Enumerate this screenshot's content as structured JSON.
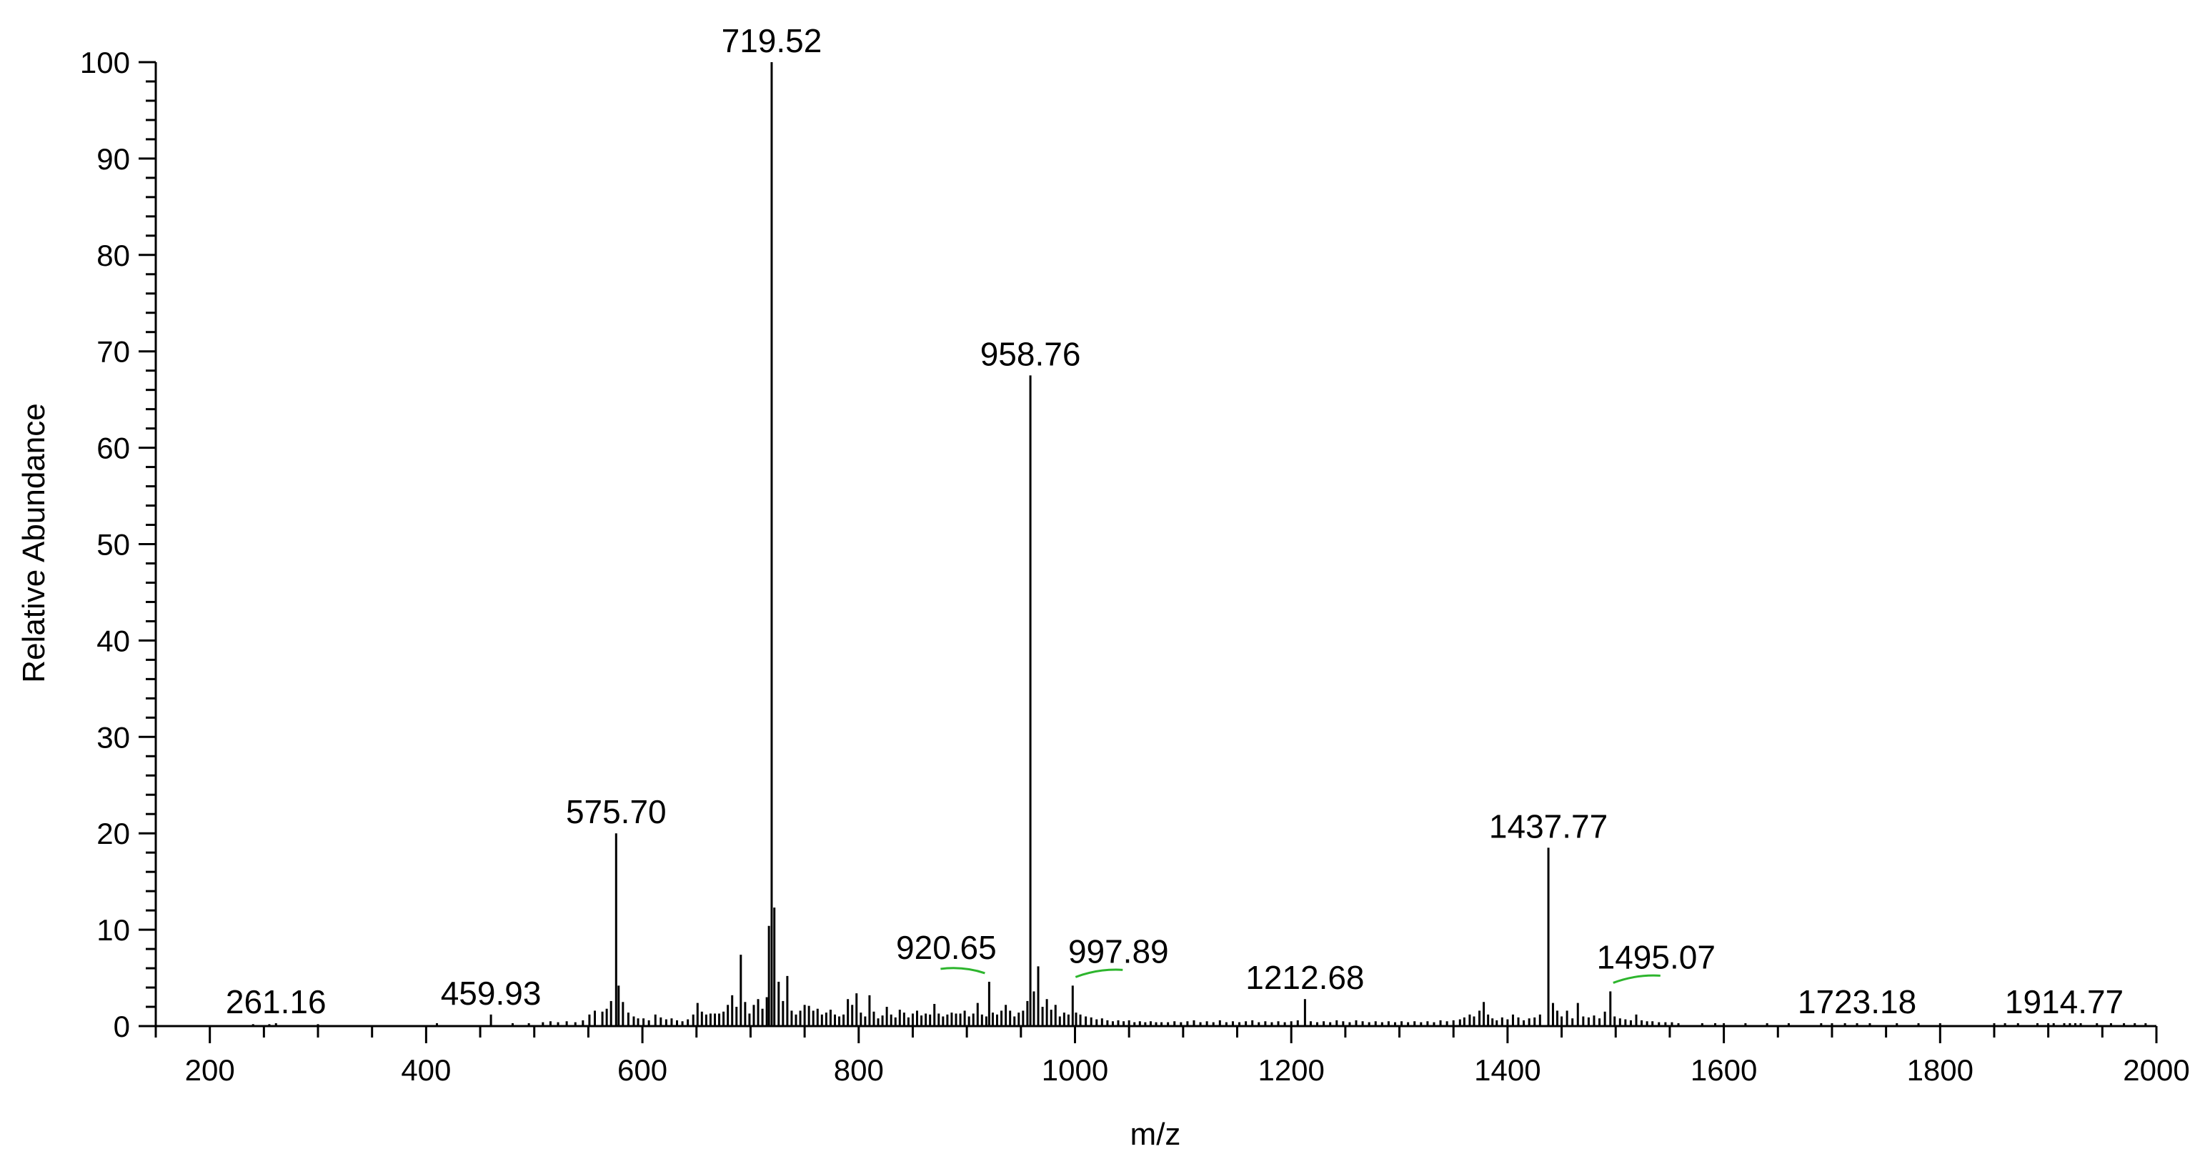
{
  "chart_data": {
    "type": "bar",
    "title": "",
    "xlabel": "m/z",
    "ylabel": "Relative Abundance",
    "xlim": [
      150,
      2000
    ],
    "ylim": [
      0,
      100
    ],
    "x_ticks": [
      200,
      400,
      600,
      800,
      1000,
      1200,
      1400,
      1600,
      1800,
      2000
    ],
    "y_ticks": [
      0,
      10,
      20,
      30,
      40,
      50,
      60,
      70,
      80,
      90,
      100
    ],
    "grid": false,
    "legend": "none",
    "colors": {
      "peaks": "#000000",
      "axes": "#000000",
      "label_connector": "#2db52d"
    },
    "labeled_peaks": [
      {
        "label": "261.16",
        "mz": 261.16,
        "intensity": 0.3
      },
      {
        "label": "459.93",
        "mz": 459.93,
        "intensity": 1.2
      },
      {
        "label": "575.70",
        "mz": 575.7,
        "intensity": 20
      },
      {
        "label": "719.52",
        "mz": 719.52,
        "intensity": 100
      },
      {
        "label": "920.65",
        "mz": 920.65,
        "intensity": 4.6,
        "connector": true
      },
      {
        "label": "958.76",
        "mz": 958.76,
        "intensity": 67.5
      },
      {
        "label": "997.89",
        "mz": 997.89,
        "intensity": 4.2,
        "connector": true
      },
      {
        "label": "1212.68",
        "mz": 1212.68,
        "intensity": 2.8
      },
      {
        "label": "1437.77",
        "mz": 1437.77,
        "intensity": 18.5
      },
      {
        "label": "1495.07",
        "mz": 1495.07,
        "intensity": 3.6,
        "connector": true
      },
      {
        "label": "1723.18",
        "mz": 1723.18,
        "intensity": 0.3
      },
      {
        "label": "1914.77",
        "mz": 1914.77,
        "intensity": 0.3
      }
    ],
    "minor_peaks": [
      [
        508,
        0.4
      ],
      [
        515,
        0.5
      ],
      [
        522,
        0.4
      ],
      [
        530,
        0.5
      ],
      [
        538,
        0.4
      ],
      [
        545,
        0.6
      ],
      [
        551,
        1.2
      ],
      [
        556,
        1.6
      ],
      [
        563,
        1.5
      ],
      [
        567,
        1.8
      ],
      [
        571,
        2.6
      ],
      [
        578,
        4.2
      ],
      [
        582,
        2.5
      ],
      [
        587,
        1.4
      ],
      [
        592,
        1.0
      ],
      [
        596,
        0.8
      ],
      [
        601,
        0.8
      ],
      [
        606,
        0.6
      ],
      [
        612,
        1.2
      ],
      [
        617,
        0.9
      ],
      [
        622,
        0.7
      ],
      [
        627,
        0.8
      ],
      [
        632,
        0.6
      ],
      [
        637,
        0.5
      ],
      [
        642,
        0.7
      ],
      [
        647,
        1.2
      ],
      [
        651,
        2.4
      ],
      [
        655,
        1.5
      ],
      [
        659,
        1.2
      ],
      [
        663,
        1.3
      ],
      [
        667,
        1.3
      ],
      [
        671,
        1.3
      ],
      [
        675,
        1.5
      ],
      [
        679,
        2.2
      ],
      [
        683,
        3.2
      ],
      [
        687,
        2.0
      ],
      [
        691,
        7.4
      ],
      [
        695,
        2.5
      ],
      [
        699,
        1.3
      ],
      [
        703,
        2.2
      ],
      [
        707,
        2.8
      ],
      [
        711,
        1.8
      ],
      [
        715,
        3.0
      ],
      [
        717,
        10.4
      ],
      [
        722,
        12.3
      ],
      [
        726,
        4.6
      ],
      [
        730,
        2.6
      ],
      [
        734,
        5.2
      ],
      [
        738,
        1.6
      ],
      [
        742,
        1.2
      ],
      [
        746,
        1.6
      ],
      [
        750,
        2.2
      ],
      [
        754,
        2.1
      ],
      [
        758,
        1.6
      ],
      [
        762,
        1.8
      ],
      [
        766,
        1.2
      ],
      [
        770,
        1.4
      ],
      [
        774,
        1.7
      ],
      [
        778,
        1.2
      ],
      [
        782,
        1.0
      ],
      [
        786,
        1.2
      ],
      [
        790,
        2.8
      ],
      [
        794,
        2.2
      ],
      [
        798,
        3.4
      ],
      [
        802,
        1.4
      ],
      [
        806,
        1.0
      ],
      [
        810,
        3.2
      ],
      [
        814,
        1.5
      ],
      [
        818,
        0.8
      ],
      [
        822,
        1.1
      ],
      [
        826,
        2.0
      ],
      [
        830,
        1.2
      ],
      [
        834,
        0.9
      ],
      [
        838,
        1.7
      ],
      [
        842,
        1.4
      ],
      [
        846,
        0.9
      ],
      [
        850,
        1.3
      ],
      [
        854,
        1.6
      ],
      [
        858,
        1.1
      ],
      [
        862,
        1.3
      ],
      [
        866,
        1.2
      ],
      [
        870,
        2.3
      ],
      [
        874,
        1.3
      ],
      [
        878,
        1.0
      ],
      [
        882,
        1.2
      ],
      [
        886,
        1.4
      ],
      [
        890,
        1.3
      ],
      [
        894,
        1.3
      ],
      [
        898,
        1.6
      ],
      [
        902,
        1.0
      ],
      [
        906,
        1.3
      ],
      [
        910,
        2.4
      ],
      [
        914,
        1.2
      ],
      [
        918,
        1.0
      ],
      [
        924,
        1.4
      ],
      [
        928,
        1.2
      ],
      [
        932,
        1.6
      ],
      [
        936,
        2.2
      ],
      [
        940,
        1.6
      ],
      [
        944,
        1.0
      ],
      [
        948,
        1.4
      ],
      [
        952,
        1.6
      ],
      [
        956,
        2.6
      ],
      [
        962,
        3.6
      ],
      [
        966,
        6.2
      ],
      [
        970,
        2.0
      ],
      [
        974,
        2.8
      ],
      [
        978,
        1.7
      ],
      [
        982,
        2.2
      ],
      [
        986,
        1.0
      ],
      [
        990,
        1.4
      ],
      [
        994,
        1.2
      ],
      [
        1001,
        1.4
      ],
      [
        1005,
        1.2
      ],
      [
        1010,
        1.0
      ],
      [
        1015,
        0.9
      ],
      [
        1020,
        0.7
      ],
      [
        1025,
        0.8
      ],
      [
        1030,
        0.6
      ],
      [
        1035,
        0.5
      ],
      [
        1040,
        0.6
      ],
      [
        1045,
        0.5
      ],
      [
        1050,
        0.6
      ],
      [
        1055,
        0.4
      ],
      [
        1060,
        0.5
      ],
      [
        1065,
        0.4
      ],
      [
        1070,
        0.5
      ],
      [
        1075,
        0.4
      ],
      [
        1080,
        0.4
      ],
      [
        1086,
        0.4
      ],
      [
        1092,
        0.5
      ],
      [
        1098,
        0.4
      ],
      [
        1104,
        0.5
      ],
      [
        1110,
        0.6
      ],
      [
        1116,
        0.4
      ],
      [
        1122,
        0.5
      ],
      [
        1128,
        0.4
      ],
      [
        1134,
        0.6
      ],
      [
        1140,
        0.4
      ],
      [
        1146,
        0.5
      ],
      [
        1152,
        0.4
      ],
      [
        1158,
        0.5
      ],
      [
        1164,
        0.6
      ],
      [
        1170,
        0.4
      ],
      [
        1176,
        0.5
      ],
      [
        1182,
        0.4
      ],
      [
        1188,
        0.5
      ],
      [
        1194,
        0.4
      ],
      [
        1200,
        0.5
      ],
      [
        1206,
        0.6
      ],
      [
        1218,
        0.5
      ],
      [
        1224,
        0.4
      ],
      [
        1230,
        0.5
      ],
      [
        1236,
        0.4
      ],
      [
        1242,
        0.6
      ],
      [
        1248,
        0.5
      ],
      [
        1254,
        0.4
      ],
      [
        1260,
        0.6
      ],
      [
        1266,
        0.5
      ],
      [
        1272,
        0.4
      ],
      [
        1278,
        0.5
      ],
      [
        1284,
        0.4
      ],
      [
        1290,
        0.5
      ],
      [
        1296,
        0.4
      ],
      [
        1302,
        0.5
      ],
      [
        1308,
        0.4
      ],
      [
        1314,
        0.5
      ],
      [
        1320,
        0.4
      ],
      [
        1326,
        0.5
      ],
      [
        1332,
        0.4
      ],
      [
        1338,
        0.6
      ],
      [
        1344,
        0.5
      ],
      [
        1350,
        0.6
      ],
      [
        1356,
        0.7
      ],
      [
        1360,
        0.9
      ],
      [
        1365,
        1.2
      ],
      [
        1369,
        1.0
      ],
      [
        1374,
        1.6
      ],
      [
        1378,
        2.5
      ],
      [
        1382,
        1.2
      ],
      [
        1386,
        0.8
      ],
      [
        1390,
        0.6
      ],
      [
        1395,
        0.9
      ],
      [
        1400,
        0.7
      ],
      [
        1405,
        1.2
      ],
      [
        1410,
        0.9
      ],
      [
        1415,
        0.6
      ],
      [
        1420,
        0.8
      ],
      [
        1425,
        0.9
      ],
      [
        1430,
        1.2
      ],
      [
        1442,
        2.4
      ],
      [
        1446,
        1.6
      ],
      [
        1450,
        1.0
      ],
      [
        1455,
        1.6
      ],
      [
        1460,
        0.8
      ],
      [
        1465,
        2.4
      ],
      [
        1470,
        1.0
      ],
      [
        1475,
        0.9
      ],
      [
        1480,
        1.1
      ],
      [
        1485,
        0.8
      ],
      [
        1490,
        1.5
      ],
      [
        1499,
        1.0
      ],
      [
        1504,
        0.8
      ],
      [
        1509,
        0.7
      ],
      [
        1514,
        0.6
      ],
      [
        1519,
        1.2
      ],
      [
        1524,
        0.6
      ],
      [
        1529,
        0.5
      ],
      [
        1534,
        0.5
      ],
      [
        1540,
        0.4
      ],
      [
        1546,
        0.4
      ],
      [
        1552,
        0.4
      ],
      [
        1558,
        0.3
      ],
      [
        1580,
        0.3
      ],
      [
        1592,
        0.3
      ],
      [
        1600,
        0.3
      ],
      [
        1620,
        0.3
      ],
      [
        1640,
        0.3
      ],
      [
        1660,
        0.3
      ],
      [
        1690,
        0.3
      ],
      [
        1700,
        0.3
      ],
      [
        1712,
        0.3
      ],
      [
        1735,
        0.3
      ],
      [
        1760,
        0.3
      ],
      [
        1780,
        0.3
      ],
      [
        1800,
        0.3
      ],
      [
        1850,
        0.3
      ],
      [
        1860,
        0.3
      ],
      [
        1872,
        0.3
      ],
      [
        1890,
        0.3
      ],
      [
        1900,
        0.3
      ],
      [
        1905,
        0.3
      ],
      [
        1920,
        0.3
      ],
      [
        1925,
        0.3
      ],
      [
        1930,
        0.3
      ],
      [
        1945,
        0.3
      ],
      [
        1958,
        0.3
      ],
      [
        1970,
        0.3
      ],
      [
        1980,
        0.3
      ],
      [
        1990,
        0.3
      ],
      [
        240,
        0.2
      ],
      [
        255,
        0.2
      ],
      [
        300,
        0.2
      ],
      [
        410,
        0.3
      ],
      [
        480,
        0.3
      ],
      [
        495,
        0.3
      ]
    ]
  }
}
